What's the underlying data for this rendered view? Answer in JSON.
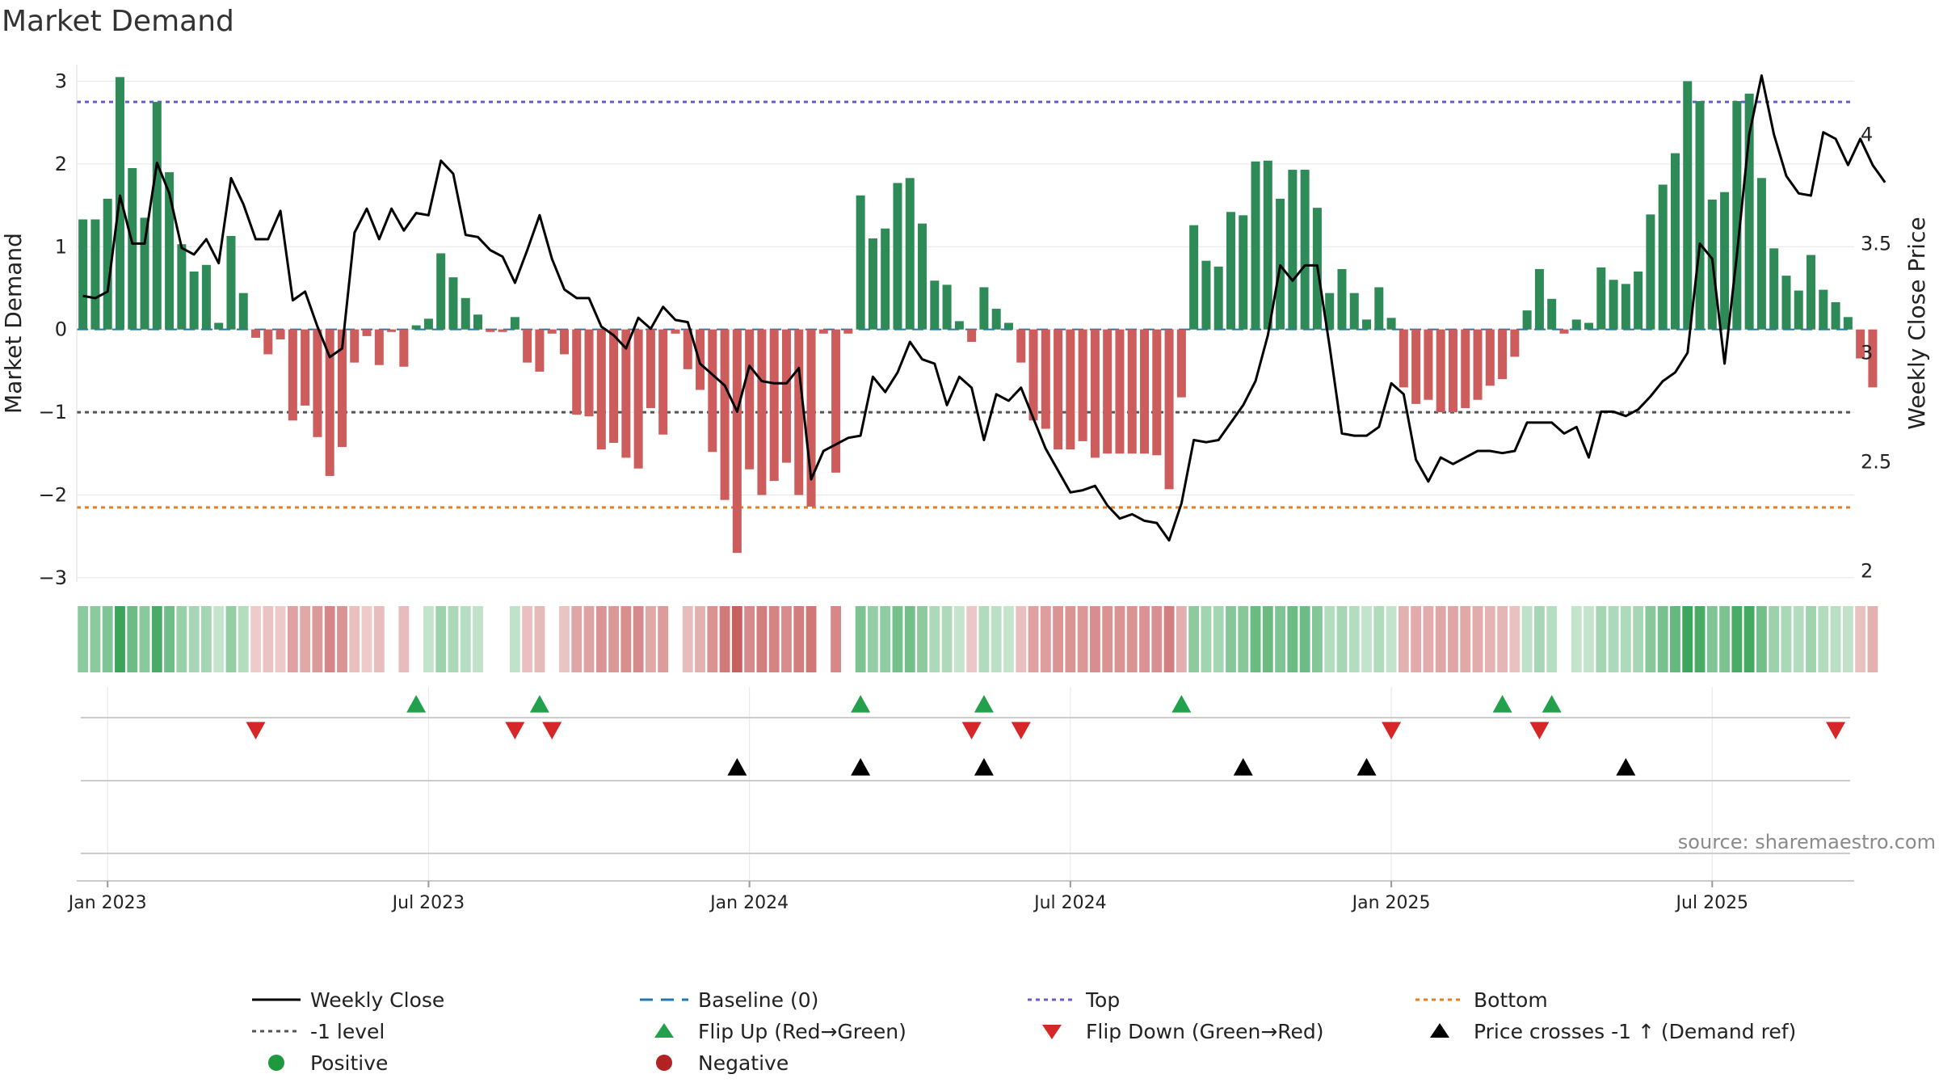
{
  "title": "Market Demand",
  "source": "source: sharemaestro.com",
  "colors": {
    "pos": "#2e8b57",
    "neg": "#cd5c5c",
    "line": "#000000",
    "baseline": "#1f77b4",
    "top": "#6a5acd",
    "minus1": "#555555",
    "bottom": "#e67e22",
    "flip_up": "#22a04b",
    "flip_down": "#d62728",
    "cross": "#000000",
    "grid": "#e6e6e6"
  },
  "chart_data": {
    "type": "bar",
    "title": "Market Demand",
    "ylabel": "Market Demand",
    "y2label": "Weekly Close Price",
    "ylim": [
      -3.05,
      3.2
    ],
    "y2lim": [
      1.95,
      4.32
    ],
    "yticks": [
      3,
      2,
      1,
      0,
      -1,
      -2,
      -3
    ],
    "ytick_labels": [
      "3",
      "2",
      "1",
      "0",
      "−1",
      "−2",
      "−3"
    ],
    "y2ticks": [
      4,
      3.5,
      3,
      2.5,
      2
    ],
    "y2tick_labels": [
      "4",
      "3.5",
      "3",
      "2.5",
      "2"
    ],
    "xtick_weeks": [
      0,
      26,
      52,
      78,
      104,
      130
    ],
    "xtick_labels": [
      "Jan 2023",
      "Jul 2023",
      "Jan 2024",
      "Jul 2024",
      "Jan 2025",
      "Jul 2025"
    ],
    "weeks": 144,
    "start_week_offset": -2,
    "demand": [
      1.33,
      1.33,
      1.58,
      3.05,
      1.95,
      1.35,
      2.75,
      1.9,
      1.03,
      0.7,
      0.78,
      0.08,
      1.13,
      0.44,
      -0.1,
      -0.3,
      -0.12,
      -1.1,
      -0.92,
      -1.3,
      -1.77,
      -1.42,
      -0.4,
      -0.08,
      -0.43,
      -0.03,
      -0.45,
      0.05,
      0.13,
      0.92,
      0.63,
      0.38,
      0.18,
      -0.03,
      -0.03,
      0.15,
      -0.4,
      -0.51,
      -0.05,
      -0.3,
      -1.03,
      -1.05,
      -1.45,
      -1.37,
      -1.55,
      -1.68,
      -0.95,
      -1.27,
      -0.05,
      -0.48,
      -0.73,
      -1.48,
      -2.06,
      -2.7,
      -1.69,
      -2.0,
      -1.83,
      -1.61,
      -2.0,
      -2.14,
      -0.05,
      -1.73,
      -0.05,
      1.62,
      1.1,
      1.22,
      1.77,
      1.83,
      1.28,
      0.59,
      0.54,
      0.1,
      -0.15,
      0.51,
      0.25,
      0.08,
      -0.4,
      -1.1,
      -1.2,
      -1.45,
      -1.45,
      -1.35,
      -1.55,
      -1.5,
      -1.5,
      -1.5,
      -1.5,
      -1.52,
      -1.93,
      -0.82,
      1.26,
      0.83,
      0.76,
      1.42,
      1.38,
      2.03,
      2.04,
      1.58,
      1.93,
      1.93,
      1.47,
      0.44,
      0.73,
      0.44,
      0.12,
      0.51,
      0.14,
      -0.7,
      -0.9,
      -0.85,
      -1.0,
      -1.0,
      -0.95,
      -0.85,
      -0.68,
      -0.6,
      -0.33,
      0.23,
      0.73,
      0.37,
      -0.05,
      0.12,
      0.08,
      0.75,
      0.6,
      0.55,
      0.7,
      1.39,
      1.75,
      2.13,
      3.0,
      2.76,
      1.57,
      1.66,
      2.76,
      2.85,
      1.83,
      0.98,
      0.65,
      0.47,
      0.9,
      0.48,
      0.33,
      0.15,
      -0.35,
      -0.7
    ],
    "close": [
      3.26,
      3.25,
      3.28,
      3.72,
      3.5,
      3.5,
      3.87,
      3.73,
      3.48,
      3.45,
      3.52,
      3.41,
      3.8,
      3.68,
      3.52,
      3.52,
      3.65,
      3.24,
      3.28,
      3.12,
      2.98,
      3.02,
      3.55,
      3.66,
      3.52,
      3.66,
      3.56,
      3.64,
      3.63,
      3.88,
      3.82,
      3.54,
      3.53,
      3.47,
      3.44,
      3.32,
      3.47,
      3.63,
      3.43,
      3.29,
      3.25,
      3.25,
      3.12,
      3.08,
      3.02,
      3.16,
      3.11,
      3.21,
      3.15,
      3.14,
      2.95,
      2.9,
      2.85,
      2.73,
      2.94,
      2.87,
      2.86,
      2.86,
      2.93,
      2.42,
      2.55,
      2.58,
      2.61,
      2.62,
      2.89,
      2.82,
      2.91,
      3.05,
      2.97,
      2.95,
      2.76,
      2.89,
      2.84,
      2.6,
      2.81,
      2.78,
      2.84,
      2.7,
      2.56,
      2.46,
      2.36,
      2.37,
      2.39,
      2.3,
      2.24,
      2.26,
      2.23,
      2.22,
      2.14,
      2.31,
      2.6,
      2.59,
      2.6,
      2.68,
      2.76,
      2.87,
      3.08,
      3.4,
      3.33,
      3.4,
      3.4,
      3.03,
      2.63,
      2.62,
      2.62,
      2.66,
      2.86,
      2.81,
      2.51,
      2.41,
      2.52,
      2.49,
      2.52,
      2.55,
      2.55,
      2.54,
      2.55,
      2.68,
      2.68,
      2.68,
      2.63,
      2.66,
      2.52,
      2.73,
      2.73,
      2.71,
      2.74,
      2.8,
      2.87,
      2.91,
      3.0,
      3.5,
      3.43,
      2.95,
      3.45,
      4.0,
      4.27,
      4.0,
      3.81,
      3.73,
      3.72,
      4.01,
      3.98,
      3.86,
      3.98,
      3.86,
      3.78
    ],
    "flip_up_weeks": [
      25,
      35,
      61,
      71,
      87,
      113,
      117
    ],
    "flip_down_weeks": [
      12,
      33,
      36,
      70,
      74,
      104,
      116,
      140
    ],
    "cross_weeks": [
      51,
      61,
      71,
      92,
      102,
      123
    ],
    "top_level": 2.75,
    "minus1_level": -1.0,
    "bottom_level": -2.15,
    "baseline_level": 0,
    "legend": [
      {
        "label": "Weekly Close",
        "kind": "line"
      },
      {
        "label": "Baseline (0)",
        "kind": "baseline"
      },
      {
        "label": "Top",
        "kind": "top"
      },
      {
        "label": "Bottom",
        "kind": "bottom"
      },
      {
        "label": "-1 level",
        "kind": "minus1"
      },
      {
        "label": "Flip Up (Red→Green)",
        "kind": "flip_up"
      },
      {
        "label": "Flip Down (Green→Red)",
        "kind": "flip_down"
      },
      {
        "label": "Price crosses -1 ↑ (Demand ref)",
        "kind": "cross"
      },
      {
        "label": "Positive",
        "kind": "positive"
      },
      {
        "label": "Negative",
        "kind": "negative"
      }
    ]
  }
}
